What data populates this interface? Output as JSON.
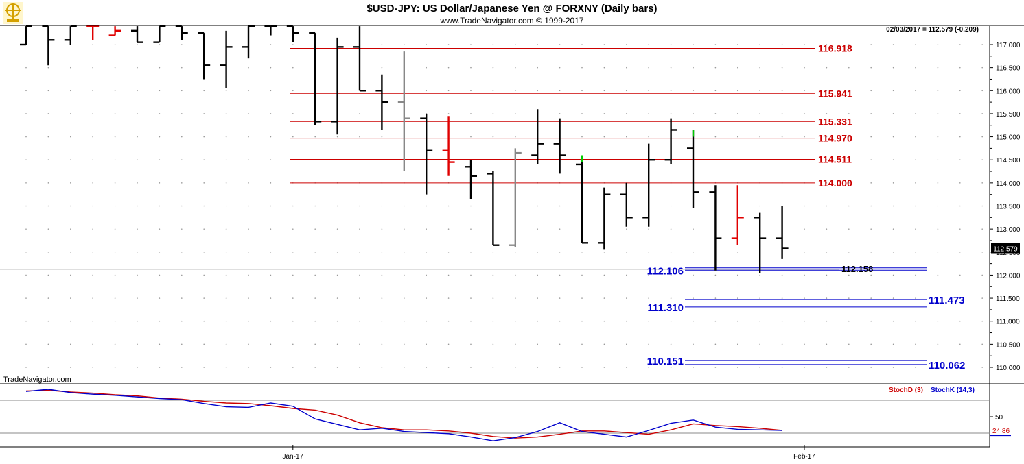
{
  "header": {
    "title": "$USD-JPY:  US Dollar/Japanese Yen @ FORXNY  (Daily bars)",
    "subtitle": "www.TradeNavigator.com © 1999-2017",
    "last_quote": "02/03/2017 = 112.579 (-0.209)"
  },
  "watermark": "TradeNavigator.com",
  "colors": {
    "bar": "#000000",
    "bar_up_red": "#e00000",
    "bar_gray": "#888888",
    "bar_green": "#00cc00",
    "resistance": "#cc0000",
    "support": "#0000cc",
    "stoch_d": "#cc0000",
    "stoch_k": "#0000cc"
  },
  "chart_data": [
    {
      "type": "ohlc",
      "ylim": [
        109.6,
        117.45
      ],
      "y_ticks": [
        "117.000",
        "116.500",
        "116.000",
        "115.500",
        "115.000",
        "114.500",
        "114.000",
        "113.500",
        "113.000",
        "112.500",
        "112.000",
        "111.500",
        "111.000",
        "110.500",
        "110.000"
      ],
      "x_ticks": [
        {
          "label": "Jan-17",
          "index": 12
        },
        {
          "label": "Feb-17",
          "index": 35
        }
      ],
      "current_price": "112.579",
      "bars": [
        {
          "o": 117.0,
          "h": 117.4,
          "l": 117.0,
          "c": 117.4,
          "color": "black"
        },
        {
          "o": 117.4,
          "h": 117.4,
          "l": 116.55,
          "c": 117.1,
          "color": "black"
        },
        {
          "o": 117.1,
          "h": 117.4,
          "l": 117.0,
          "c": 117.4,
          "color": "black"
        },
        {
          "o": 117.4,
          "h": 117.4,
          "l": 117.1,
          "c": 117.4,
          "color": "red"
        },
        {
          "o": 117.2,
          "h": 117.4,
          "l": 117.2,
          "c": 117.3,
          "color": "red"
        },
        {
          "o": 117.3,
          "h": 117.4,
          "l": 117.05,
          "c": 117.05,
          "color": "black"
        },
        {
          "o": 117.05,
          "h": 117.4,
          "l": 117.05,
          "c": 117.4,
          "color": "black"
        },
        {
          "o": 117.4,
          "h": 117.4,
          "l": 117.1,
          "c": 117.25,
          "color": "black"
        },
        {
          "o": 117.25,
          "h": 117.25,
          "l": 116.25,
          "c": 116.55,
          "color": "black"
        },
        {
          "o": 116.55,
          "h": 117.3,
          "l": 116.05,
          "c": 116.95,
          "color": "black"
        },
        {
          "o": 116.95,
          "h": 117.4,
          "l": 116.7,
          "c": 117.4,
          "color": "black"
        },
        {
          "o": 117.4,
          "h": 117.4,
          "l": 117.2,
          "c": 117.4,
          "color": "black"
        },
        {
          "o": 117.4,
          "h": 117.4,
          "l": 117.05,
          "c": 117.25,
          "color": "black"
        },
        {
          "o": 117.25,
          "h": 117.25,
          "l": 115.25,
          "c": 115.33,
          "color": "black"
        },
        {
          "o": 115.33,
          "h": 117.15,
          "l": 115.05,
          "c": 116.95,
          "color": "black"
        },
        {
          "o": 116.95,
          "h": 117.4,
          "l": 116.0,
          "c": 116.0,
          "color": "black"
        },
        {
          "o": 116.0,
          "h": 116.35,
          "l": 115.15,
          "c": 115.75,
          "color": "black"
        },
        {
          "o": 115.75,
          "h": 116.85,
          "l": 114.25,
          "c": 115.4,
          "color": "gray"
        },
        {
          "o": 115.4,
          "h": 115.5,
          "l": 113.75,
          "c": 114.7,
          "color": "black"
        },
        {
          "o": 114.7,
          "h": 115.45,
          "l": 114.15,
          "c": 114.45,
          "color": "red"
        },
        {
          "o": 114.35,
          "h": 114.5,
          "l": 113.65,
          "c": 114.15,
          "color": "black"
        },
        {
          "o": 114.2,
          "h": 114.25,
          "l": 112.65,
          "c": 112.65,
          "color": "black"
        },
        {
          "o": 112.65,
          "h": 114.75,
          "l": 112.6,
          "c": 114.65,
          "color": "gray"
        },
        {
          "o": 114.6,
          "h": 115.6,
          "l": 114.4,
          "c": 114.85,
          "color": "black"
        },
        {
          "o": 114.85,
          "h": 115.4,
          "l": 114.2,
          "c": 114.6,
          "color": "black"
        },
        {
          "o": 114.4,
          "h": 114.6,
          "l": 112.7,
          "c": 112.7,
          "color": "black",
          "wick_color": "green"
        },
        {
          "o": 112.7,
          "h": 113.9,
          "l": 112.55,
          "c": 113.75,
          "color": "black"
        },
        {
          "o": 113.75,
          "h": 114.0,
          "l": 113.05,
          "c": 113.25,
          "color": "black"
        },
        {
          "o": 113.25,
          "h": 114.85,
          "l": 113.05,
          "c": 114.5,
          "color": "black"
        },
        {
          "o": 114.5,
          "h": 115.4,
          "l": 114.4,
          "c": 115.15,
          "color": "black"
        },
        {
          "o": 114.75,
          "h": 115.15,
          "l": 113.45,
          "c": 113.8,
          "color": "black",
          "wick_color": "green"
        },
        {
          "o": 113.8,
          "h": 113.95,
          "l": 112.1,
          "c": 112.8,
          "color": "black"
        },
        {
          "o": 112.8,
          "h": 113.95,
          "l": 112.65,
          "c": 113.25,
          "color": "red"
        },
        {
          "o": 113.25,
          "h": 113.35,
          "l": 112.05,
          "c": 112.8,
          "color": "black"
        },
        {
          "o": 112.8,
          "h": 113.5,
          "l": 112.35,
          "c": 112.579,
          "color": "black"
        }
      ],
      "resistance_levels": [
        "116.918",
        "115.941",
        "115.331",
        "114.970",
        "114.511",
        "114.000"
      ],
      "support_levels": [
        {
          "left": "112.106",
          "right": "112.158",
          "value": 112.106,
          "right_value": 112.158
        },
        {
          "left": "111.310",
          "right": "111.473",
          "value": 111.31,
          "right_value": 111.473
        },
        {
          "left": "110.151",
          "right": "110.062",
          "value": 110.151,
          "right_value": 110.062
        }
      ],
      "horizontal_line": 112.13
    },
    {
      "type": "line",
      "name": "stochastic",
      "ylim": [
        0,
        100
      ],
      "y_tick": "50",
      "current_value": "24.86",
      "reference_levels": [
        80,
        20
      ],
      "series": [
        {
          "name": "StochD (3)",
          "color": "#cc0000",
          "values": [
            97,
            98,
            95,
            93,
            90,
            88,
            84,
            82,
            78,
            75,
            74,
            70,
            65,
            62,
            53,
            39,
            30,
            26,
            26,
            24,
            20,
            14,
            11,
            13,
            18,
            24,
            24,
            21,
            18,
            26,
            37,
            34,
            32,
            29,
            25
          ]
        },
        {
          "name": "StochK (14,3)",
          "color": "#0000cc",
          "values": [
            96,
            100,
            94,
            91,
            89,
            86,
            83,
            81,
            74,
            68,
            67,
            75,
            69,
            46,
            36,
            26,
            29,
            23,
            21,
            19,
            13,
            6,
            12,
            23,
            39,
            23,
            18,
            13,
            25,
            38,
            44,
            31,
            27,
            26,
            24.86
          ]
        }
      ]
    }
  ]
}
